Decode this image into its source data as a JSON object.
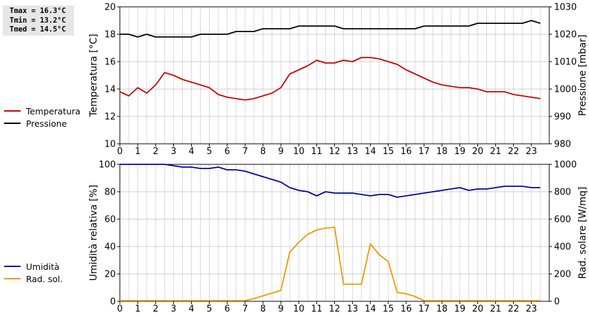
{
  "stats": {
    "tmax": "Tmax = 16.3°C",
    "tmin": "Tmin = 13.2°C",
    "tmed": "Tmed = 14.5°C"
  },
  "legend_top": [
    {
      "label": "Temperatura",
      "color": "#cc0000"
    },
    {
      "label": "Pressione",
      "color": "#000000"
    }
  ],
  "legend_bottom": [
    {
      "label": "Umidità",
      "color": "#0000aa"
    },
    {
      "label": "Rad. sol.",
      "color": "#ee9900"
    }
  ],
  "chart_data": [
    {
      "type": "line",
      "xlim": [
        0,
        24
      ],
      "x_ticks": [
        "0",
        "1",
        "2",
        "3",
        "4",
        "5",
        "6",
        "7",
        "8",
        "9",
        "10",
        "11",
        "12",
        "13",
        "14",
        "15",
        "16",
        "17",
        "18",
        "19",
        "20",
        "21",
        "22",
        "23"
      ],
      "ylabel": "Temperatura [°C]",
      "ylim": [
        10,
        20
      ],
      "y_ticks": [
        "10",
        "12",
        "14",
        "16",
        "18",
        "20"
      ],
      "y2label": "Pressione [mbar]",
      "y2lim": [
        980,
        1030
      ],
      "y2_ticks": [
        "980",
        "990",
        "1000",
        "1010",
        "1020",
        "1030"
      ],
      "grid": true,
      "series": [
        {
          "name": "Temperatura",
          "color": "#cc0000",
          "axis": "left",
          "x": [
            0,
            0.5,
            1,
            1.5,
            2,
            2.5,
            3,
            3.5,
            4,
            4.5,
            5,
            5.5,
            6,
            6.5,
            7,
            7.5,
            8,
            8.5,
            9,
            9.5,
            10,
            10.5,
            11,
            11.5,
            12,
            12.5,
            13,
            13.5,
            14,
            14.5,
            15,
            15.5,
            16,
            16.5,
            17,
            17.5,
            18,
            18.5,
            19,
            19.5,
            20,
            20.5,
            21,
            21.5,
            22,
            22.5,
            23,
            23.5
          ],
          "y": [
            13.8,
            13.5,
            14.1,
            13.7,
            14.3,
            15.2,
            15.0,
            14.7,
            14.5,
            14.3,
            14.1,
            13.6,
            13.4,
            13.3,
            13.2,
            13.3,
            13.5,
            13.7,
            14.1,
            15.1,
            15.4,
            15.7,
            16.1,
            15.9,
            15.9,
            16.1,
            16.0,
            16.3,
            16.3,
            16.2,
            16.0,
            15.8,
            15.4,
            15.1,
            14.8,
            14.5,
            14.3,
            14.2,
            14.1,
            14.1,
            14.0,
            13.8,
            13.8,
            13.8,
            13.6,
            13.5,
            13.4,
            13.3
          ]
        },
        {
          "name": "Pressione",
          "color": "#000000",
          "axis": "right",
          "x": [
            0,
            0.5,
            1,
            1.5,
            2,
            2.5,
            3,
            3.5,
            4,
            4.5,
            5,
            5.5,
            6,
            6.5,
            7,
            7.5,
            8,
            8.5,
            9,
            9.5,
            10,
            10.5,
            11,
            11.5,
            12,
            12.5,
            13,
            13.5,
            14,
            14.5,
            15,
            15.5,
            16,
            16.5,
            17,
            17.5,
            18,
            18.5,
            19,
            19.5,
            20,
            20.5,
            21,
            21.5,
            22,
            22.5,
            23,
            23.5
          ],
          "y": [
            1020,
            1020,
            1019,
            1020,
            1019,
            1019,
            1019,
            1019,
            1019,
            1020,
            1020,
            1020,
            1020,
            1021,
            1021,
            1021,
            1022,
            1022,
            1022,
            1022,
            1023,
            1023,
            1023,
            1023,
            1023,
            1022,
            1022,
            1022,
            1022,
            1022,
            1022,
            1022,
            1022,
            1022,
            1023,
            1023,
            1023,
            1023,
            1023,
            1023,
            1024,
            1024,
            1024,
            1024,
            1024,
            1024,
            1025,
            1024
          ]
        }
      ]
    },
    {
      "type": "line",
      "xlim": [
        0,
        24
      ],
      "x_ticks": [
        "0",
        "1",
        "2",
        "3",
        "4",
        "5",
        "6",
        "7",
        "8",
        "9",
        "10",
        "11",
        "12",
        "13",
        "14",
        "15",
        "16",
        "17",
        "18",
        "19",
        "20",
        "21",
        "22",
        "23"
      ],
      "ylabel": "Umidità relativa [%]",
      "ylim": [
        0,
        100
      ],
      "y_ticks": [
        "0",
        "20",
        "40",
        "60",
        "80",
        "100"
      ],
      "y2label": "Rad. solare [W/mq]",
      "y2lim": [
        0,
        1000
      ],
      "y2_ticks": [
        "0",
        "200",
        "400",
        "600",
        "800",
        "1000"
      ],
      "grid": true,
      "series": [
        {
          "name": "Umidità",
          "color": "#0000aa",
          "axis": "left",
          "x": [
            0,
            0.5,
            1,
            1.5,
            2,
            2.5,
            3,
            3.5,
            4,
            4.5,
            5,
            5.5,
            6,
            6.5,
            7,
            7.5,
            8,
            8.5,
            9,
            9.5,
            10,
            10.5,
            11,
            11.5,
            12,
            12.5,
            13,
            13.5,
            14,
            14.5,
            15,
            15.5,
            16,
            16.5,
            17,
            17.5,
            18,
            18.5,
            19,
            19.5,
            20,
            20.5,
            21,
            21.5,
            22,
            22.5,
            23,
            23.5
          ],
          "y": [
            100,
            100,
            100,
            100,
            100,
            100,
            99,
            98,
            98,
            97,
            97,
            98,
            96,
            96,
            95,
            93,
            91,
            89,
            87,
            83,
            81,
            80,
            77,
            80,
            79,
            79,
            79,
            78,
            77,
            78,
            78,
            76,
            77,
            78,
            79,
            80,
            81,
            82,
            83,
            81,
            82,
            82,
            83,
            84,
            84,
            84,
            83,
            83
          ]
        },
        {
          "name": "Rad. sol.",
          "color": "#ee9900",
          "axis": "right",
          "x": [
            0,
            0.5,
            1,
            1.5,
            2,
            2.5,
            3,
            3.5,
            4,
            4.5,
            5,
            5.5,
            6,
            6.5,
            7,
            7.5,
            8,
            8.5,
            9,
            9.5,
            10,
            10.5,
            11,
            11.5,
            12,
            12.5,
            13,
            13.5,
            14,
            14.5,
            15,
            15.5,
            16,
            16.5,
            17,
            17.5,
            18,
            18.5,
            19,
            19.5,
            20,
            20.5,
            21,
            21.5,
            22,
            22.5,
            23,
            23.5
          ],
          "y": [
            5,
            5,
            5,
            5,
            5,
            5,
            5,
            5,
            5,
            5,
            5,
            5,
            5,
            5,
            5,
            20,
            40,
            60,
            80,
            360,
            430,
            490,
            520,
            535,
            540,
            125,
            125,
            125,
            420,
            340,
            290,
            65,
            55,
            35,
            5,
            5,
            5,
            5,
            5,
            5,
            5,
            5,
            5,
            5,
            5,
            5,
            5,
            5
          ]
        }
      ]
    }
  ]
}
